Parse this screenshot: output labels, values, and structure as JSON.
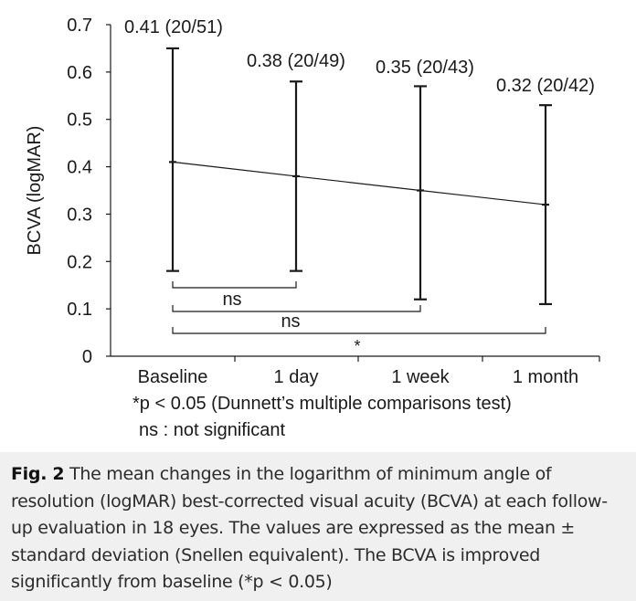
{
  "chart_data": {
    "type": "line",
    "ylabel": "BCVA (logMAR)",
    "xlabel": "",
    "categories": [
      "Baseline",
      "1 day",
      "1 week",
      "1 month"
    ],
    "y_ticks": [
      "0",
      "0.1",
      "0.2",
      "0.3",
      "0.4",
      "0.5",
      "0.6",
      "0.7"
    ],
    "ylim": [
      0,
      0.7
    ],
    "grid": false,
    "series": [
      {
        "mean": [
          0.41,
          0.38,
          0.35,
          0.32
        ],
        "upper": [
          0.65,
          0.58,
          0.57,
          0.53
        ],
        "lower": [
          0.18,
          0.18,
          0.12,
          0.11
        ]
      }
    ],
    "data_labels": [
      "0.41 (20/51)",
      "0.38 (20/49)",
      "0.35 (20/43)",
      "0.32 (20/42)"
    ],
    "comparisons": [
      {
        "from": "Baseline",
        "to": "1 day",
        "label": "ns"
      },
      {
        "from": "Baseline",
        "to": "1 week",
        "label": "ns"
      },
      {
        "from": "Baseline",
        "to": "1 month",
        "label": "*"
      }
    ],
    "footnotes": [
      "*p < 0.05 (Dunnett’s multiple comparisons test)",
      "ns : not significant"
    ]
  },
  "caption": {
    "label": "Fig. 2",
    "text": " The mean changes in the logarithm of minimum angle of resolution (logMAR) best-corrected visual acuity (BCVA) at each follow-up evaluation in 18 eyes. The values are expressed as the mean ± standard deviation (Snellen equivalent). The BCVA is improved significantly from baseline (*p < 0.05)"
  },
  "colors": {
    "ink": "#1a1a1a",
    "caption_background": "#f0f0f0"
  }
}
